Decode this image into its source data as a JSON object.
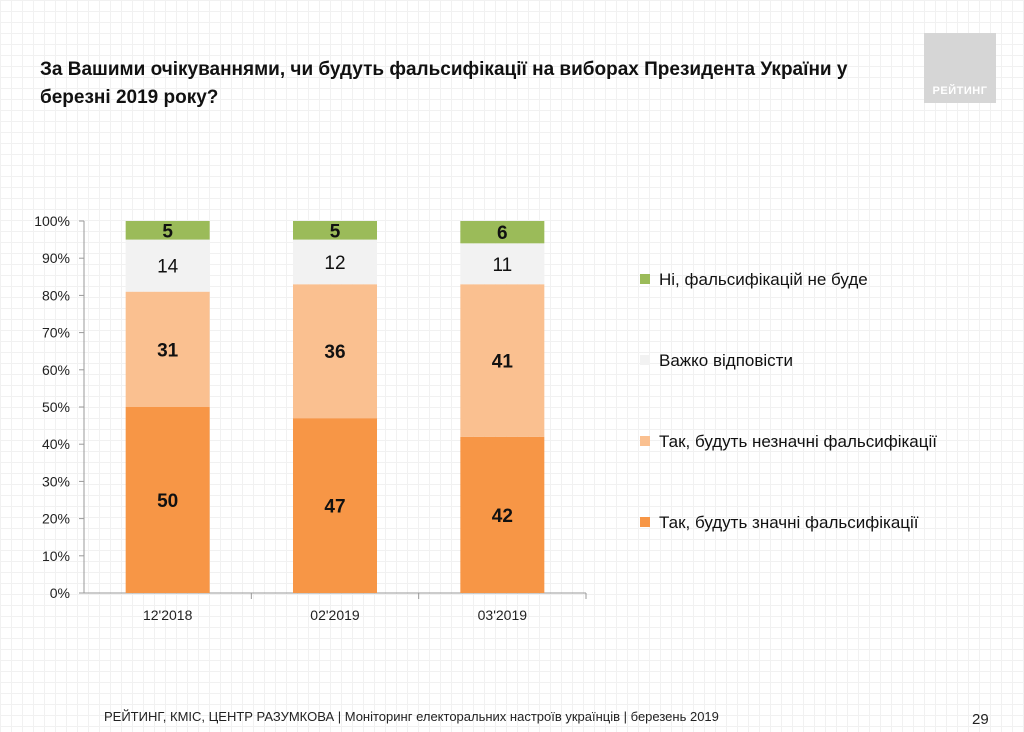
{
  "header": {
    "title": "За Вашими очікуваннями, чи будуть фальсифікації на виборах Президента України у березні 2019 року?",
    "logo_text": "РЕЙТИНГ"
  },
  "chart_data": {
    "type": "bar",
    "stacked": true,
    "categories": [
      "12'2018",
      "02'2019",
      "03'2019"
    ],
    "series": [
      {
        "name": "Так, будуть значні фальсифікації",
        "values": [
          50,
          47,
          42
        ],
        "color": "#f79646"
      },
      {
        "name": "Так, будуть незначні фальсифікації",
        "values": [
          31,
          36,
          41
        ],
        "color": "#fac090"
      },
      {
        "name": "Важко відповісти",
        "values": [
          14,
          12,
          11
        ],
        "color": "#f2f2f2"
      },
      {
        "name": "Ні, фальсифікацій не буде",
        "values": [
          5,
          5,
          6
        ],
        "color": "#9bbb59"
      }
    ],
    "yticks": [
      "0%",
      "10%",
      "20%",
      "30%",
      "40%",
      "50%",
      "60%",
      "70%",
      "80%",
      "90%",
      "100%"
    ],
    "ylim": [
      0,
      100
    ],
    "legend_position": "right",
    "legend_order": [
      3,
      2,
      1,
      0
    ]
  },
  "footer": {
    "source": "РЕЙТИНГ, КМІС, ЦЕНТР РАЗУМКОВА  | Моніторинг електоральних настроїв українців | березень 2019",
    "page_number": "29"
  }
}
